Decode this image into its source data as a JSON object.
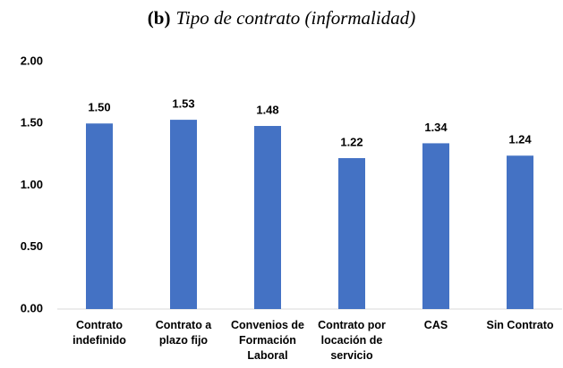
{
  "chart_data": {
    "type": "bar",
    "panel_label": "(b)",
    "title": "Tipo de contrato (informalidad)",
    "categories": [
      "Contrato indefinido",
      "Contrato a plazo fijo",
      "Convenios de Formación Laboral",
      "Contrato por locación de servicio",
      "CAS",
      "Sin Contrato"
    ],
    "values": [
      1.5,
      1.53,
      1.48,
      1.22,
      1.34,
      1.24
    ],
    "value_labels": [
      "1.50",
      "1.53",
      "1.48",
      "1.22",
      "1.34",
      "1.24"
    ],
    "color": "#4472c4",
    "ylim": [
      0,
      2
    ],
    "yticks": [
      {
        "value": 0,
        "label": "0.00"
      },
      {
        "value": 0.5,
        "label": "0.50"
      },
      {
        "value": 1,
        "label": "1.00"
      },
      {
        "value": 1.5,
        "label": "1.50"
      },
      {
        "value": 2,
        "label": "2.00"
      }
    ],
    "grid": false
  }
}
